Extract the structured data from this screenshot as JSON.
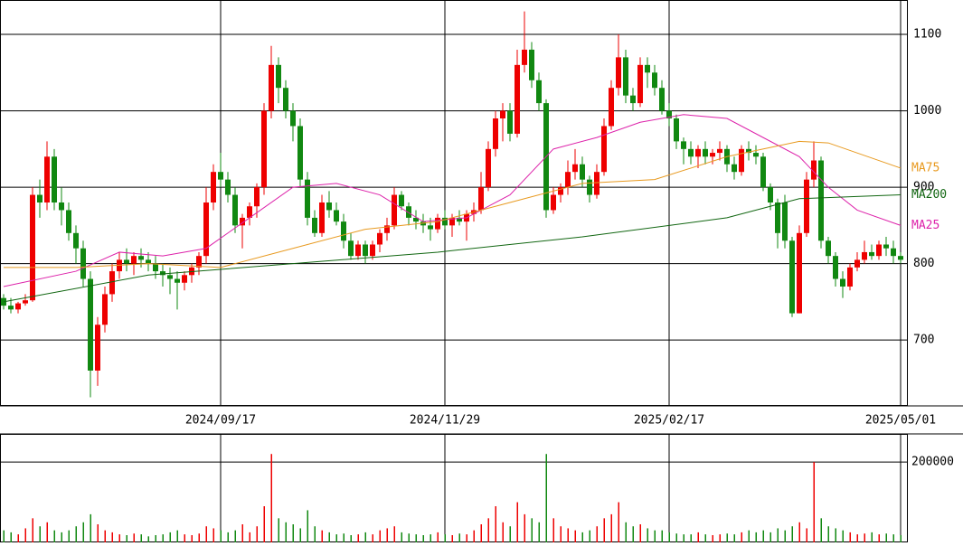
{
  "chart_data": {
    "type": "candlestick",
    "up_color": "#ee0000",
    "down_color": "#118811",
    "ylim": [
      615,
      1145
    ],
    "yticks": [
      700,
      800,
      900,
      1000,
      1100
    ],
    "vlim": [
      0,
      270000
    ],
    "vticks": [
      200000
    ],
    "categories": [
      null,
      null,
      null,
      null,
      null,
      null,
      null,
      null,
      null,
      null,
      null,
      null,
      null,
      null,
      null,
      null,
      null,
      null,
      null,
      null,
      null,
      null,
      null,
      null,
      null,
      null,
      null,
      null,
      null,
      null,
      "2024/09/17",
      null,
      null,
      null,
      null,
      null,
      null,
      null,
      null,
      null,
      null,
      null,
      null,
      null,
      null,
      null,
      null,
      null,
      null,
      null,
      null,
      null,
      null,
      null,
      null,
      null,
      null,
      null,
      null,
      null,
      null,
      "2024/11/29",
      null,
      null,
      null,
      null,
      null,
      null,
      null,
      null,
      null,
      null,
      null,
      null,
      null,
      null,
      null,
      null,
      null,
      null,
      null,
      null,
      null,
      null,
      null,
      null,
      null,
      null,
      null,
      null,
      null,
      null,
      "2025/02/17",
      null,
      null,
      null,
      null,
      null,
      null,
      null,
      null,
      null,
      null,
      null,
      null,
      null,
      null,
      null,
      null,
      null,
      null,
      null,
      null,
      null,
      null,
      null,
      null,
      null,
      null,
      null,
      null,
      null,
      null,
      null,
      "2025/05/01"
    ],
    "ohlc": [
      [
        755,
        760,
        740,
        745
      ],
      [
        745,
        755,
        735,
        740
      ],
      [
        740,
        750,
        735,
        748
      ],
      [
        748,
        760,
        745,
        752
      ],
      [
        752,
        900,
        750,
        890
      ],
      [
        890,
        910,
        860,
        880
      ],
      [
        880,
        960,
        870,
        940
      ],
      [
        940,
        950,
        870,
        880
      ],
      [
        880,
        900,
        850,
        870
      ],
      [
        870,
        880,
        830,
        840
      ],
      [
        840,
        850,
        800,
        820
      ],
      [
        820,
        830,
        770,
        780
      ],
      [
        780,
        790,
        625,
        660
      ],
      [
        660,
        730,
        640,
        720
      ],
      [
        720,
        770,
        710,
        760
      ],
      [
        760,
        800,
        750,
        790
      ],
      [
        790,
        815,
        780,
        805
      ],
      [
        805,
        820,
        790,
        800
      ],
      [
        800,
        815,
        785,
        810
      ],
      [
        810,
        820,
        795,
        805
      ],
      [
        805,
        815,
        790,
        800
      ],
      [
        800,
        810,
        780,
        790
      ],
      [
        790,
        800,
        770,
        785
      ],
      [
        785,
        795,
        760,
        780
      ],
      [
        780,
        790,
        740,
        775
      ],
      [
        775,
        790,
        765,
        785
      ],
      [
        785,
        800,
        775,
        795
      ],
      [
        795,
        815,
        785,
        810
      ],
      [
        810,
        900,
        800,
        880
      ],
      [
        880,
        930,
        870,
        920
      ],
      [
        920,
        945,
        900,
        910
      ],
      [
        910,
        920,
        880,
        890
      ],
      [
        890,
        900,
        840,
        850
      ],
      [
        850,
        865,
        820,
        860
      ],
      [
        860,
        880,
        850,
        875
      ],
      [
        875,
        905,
        860,
        900
      ],
      [
        900,
        1010,
        890,
        1000
      ],
      [
        1000,
        1085,
        990,
        1060
      ],
      [
        1060,
        1070,
        1010,
        1030
      ],
      [
        1030,
        1040,
        990,
        1000
      ],
      [
        1000,
        1010,
        960,
        980
      ],
      [
        980,
        990,
        900,
        910
      ],
      [
        910,
        920,
        850,
        860
      ],
      [
        860,
        870,
        835,
        840
      ],
      [
        840,
        890,
        835,
        880
      ],
      [
        880,
        895,
        860,
        870
      ],
      [
        870,
        880,
        850,
        855
      ],
      [
        855,
        865,
        820,
        830
      ],
      [
        830,
        840,
        805,
        810
      ],
      [
        810,
        830,
        805,
        825
      ],
      [
        825,
        830,
        800,
        810
      ],
      [
        810,
        830,
        805,
        825
      ],
      [
        825,
        845,
        815,
        840
      ],
      [
        840,
        860,
        830,
        850
      ],
      [
        850,
        900,
        845,
        890
      ],
      [
        890,
        895,
        870,
        875
      ],
      [
        875,
        880,
        850,
        860
      ],
      [
        860,
        870,
        845,
        855
      ],
      [
        855,
        865,
        840,
        850
      ],
      [
        850,
        860,
        830,
        845
      ],
      [
        845,
        865,
        840,
        860
      ],
      [
        860,
        870,
        845,
        850
      ],
      [
        850,
        865,
        835,
        860
      ],
      [
        860,
        870,
        850,
        855
      ],
      [
        855,
        870,
        830,
        865
      ],
      [
        865,
        880,
        855,
        870
      ],
      [
        870,
        920,
        865,
        900
      ],
      [
        900,
        960,
        895,
        950
      ],
      [
        950,
        1000,
        940,
        990
      ],
      [
        990,
        1010,
        960,
        1000
      ],
      [
        1000,
        1010,
        960,
        970
      ],
      [
        970,
        1080,
        965,
        1060
      ],
      [
        1060,
        1130,
        1050,
        1080
      ],
      [
        1080,
        1090,
        1030,
        1040
      ],
      [
        1040,
        1050,
        1000,
        1010
      ],
      [
        1010,
        1015,
        860,
        870
      ],
      [
        870,
        900,
        865,
        890
      ],
      [
        890,
        905,
        880,
        900
      ],
      [
        900,
        935,
        890,
        920
      ],
      [
        920,
        950,
        910,
        930
      ],
      [
        930,
        940,
        900,
        910
      ],
      [
        910,
        915,
        880,
        890
      ],
      [
        890,
        930,
        885,
        920
      ],
      [
        920,
        990,
        915,
        980
      ],
      [
        980,
        1040,
        975,
        1030
      ],
      [
        1030,
        1100,
        1020,
        1070
      ],
      [
        1070,
        1080,
        1010,
        1020
      ],
      [
        1020,
        1030,
        1000,
        1010
      ],
      [
        1010,
        1070,
        1005,
        1060
      ],
      [
        1060,
        1070,
        1030,
        1050
      ],
      [
        1050,
        1060,
        1020,
        1030
      ],
      [
        1030,
        1040,
        995,
        1000
      ],
      [
        1000,
        1010,
        980,
        990
      ],
      [
        990,
        995,
        950,
        960
      ],
      [
        960,
        965,
        930,
        950
      ],
      [
        950,
        960,
        930,
        940
      ],
      [
        940,
        955,
        925,
        950
      ],
      [
        950,
        960,
        930,
        940
      ],
      [
        940,
        950,
        930,
        945
      ],
      [
        945,
        960,
        935,
        950
      ],
      [
        950,
        955,
        920,
        930
      ],
      [
        930,
        940,
        910,
        920
      ],
      [
        920,
        955,
        915,
        950
      ],
      [
        950,
        960,
        935,
        945
      ],
      [
        945,
        955,
        930,
        940
      ],
      [
        940,
        945,
        895,
        900
      ],
      [
        900,
        905,
        870,
        880
      ],
      [
        880,
        885,
        820,
        840
      ],
      [
        880,
        890,
        820,
        830
      ],
      [
        830,
        835,
        730,
        735
      ],
      [
        735,
        850,
        735,
        840
      ],
      [
        840,
        920,
        835,
        910
      ],
      [
        910,
        960,
        900,
        935
      ],
      [
        935,
        940,
        820,
        830
      ],
      [
        830,
        835,
        800,
        810
      ],
      [
        810,
        815,
        770,
        780
      ],
      [
        780,
        790,
        755,
        770
      ],
      [
        770,
        800,
        765,
        795
      ],
      [
        795,
        815,
        790,
        805
      ],
      [
        805,
        830,
        800,
        815
      ],
      [
        815,
        825,
        805,
        810
      ],
      [
        810,
        830,
        805,
        825
      ],
      [
        825,
        835,
        810,
        820
      ],
      [
        820,
        830,
        800,
        810
      ],
      [
        810,
        815,
        800,
        805
      ]
    ],
    "volumes": [
      30000,
      25000,
      20000,
      35000,
      60000,
      40000,
      50000,
      30000,
      25000,
      30000,
      40000,
      50000,
      70000,
      45000,
      30000,
      25000,
      20000,
      18000,
      22000,
      20000,
      15000,
      18000,
      20000,
      25000,
      30000,
      20000,
      18000,
      22000,
      40000,
      35000,
      30000,
      25000,
      30000,
      45000,
      25000,
      40000,
      90000,
      220000,
      60000,
      50000,
      45000,
      35000,
      80000,
      40000,
      30000,
      25000,
      20000,
      22000,
      18000,
      20000,
      25000,
      20000,
      30000,
      35000,
      40000,
      25000,
      22000,
      20000,
      18000,
      20000,
      25000,
      20000,
      18000,
      22000,
      20000,
      30000,
      45000,
      60000,
      90000,
      50000,
      40000,
      100000,
      70000,
      60000,
      50000,
      220000,
      60000,
      40000,
      35000,
      30000,
      25000,
      30000,
      40000,
      60000,
      70000,
      100000,
      50000,
      40000,
      45000,
      35000,
      30000,
      30000,
      25000,
      22000,
      20000,
      20000,
      25000,
      20000,
      18000,
      20000,
      22000,
      20000,
      25000,
      30000,
      25000,
      30000,
      25000,
      35000,
      30000,
      40000,
      50000,
      35000,
      200000,
      60000,
      40000,
      35000,
      30000,
      25000,
      20000,
      22000,
      25000,
      20000,
      22000,
      20000,
      18000
    ],
    "ma_lines": [
      {
        "name": "MA25",
        "color": "#dd22aa",
        "x": [
          0,
          10,
          16,
          22,
          28,
          34,
          40,
          46,
          52,
          58,
          64,
          70,
          76,
          82,
          88,
          94,
          100,
          106,
          110,
          114,
          118,
          124
        ],
        "values": [
          770,
          790,
          815,
          810,
          820,
          860,
          900,
          905,
          890,
          855,
          860,
          890,
          950,
          965,
          985,
          995,
          990,
          960,
          940,
          900,
          870,
          850
        ]
      },
      {
        "name": "MA75",
        "color": "#e89a20",
        "x": [
          0,
          10,
          20,
          30,
          40,
          50,
          60,
          70,
          80,
          90,
          100,
          110,
          114,
          124
        ],
        "values": [
          795,
          795,
          800,
          795,
          820,
          845,
          855,
          880,
          905,
          910,
          940,
          960,
          958,
          925
        ]
      },
      {
        "name": "MA200",
        "color": "#116611",
        "x": [
          0,
          20,
          40,
          60,
          80,
          100,
          110,
          124
        ],
        "values": [
          750,
          785,
          800,
          815,
          835,
          860,
          885,
          890
        ]
      }
    ]
  }
}
